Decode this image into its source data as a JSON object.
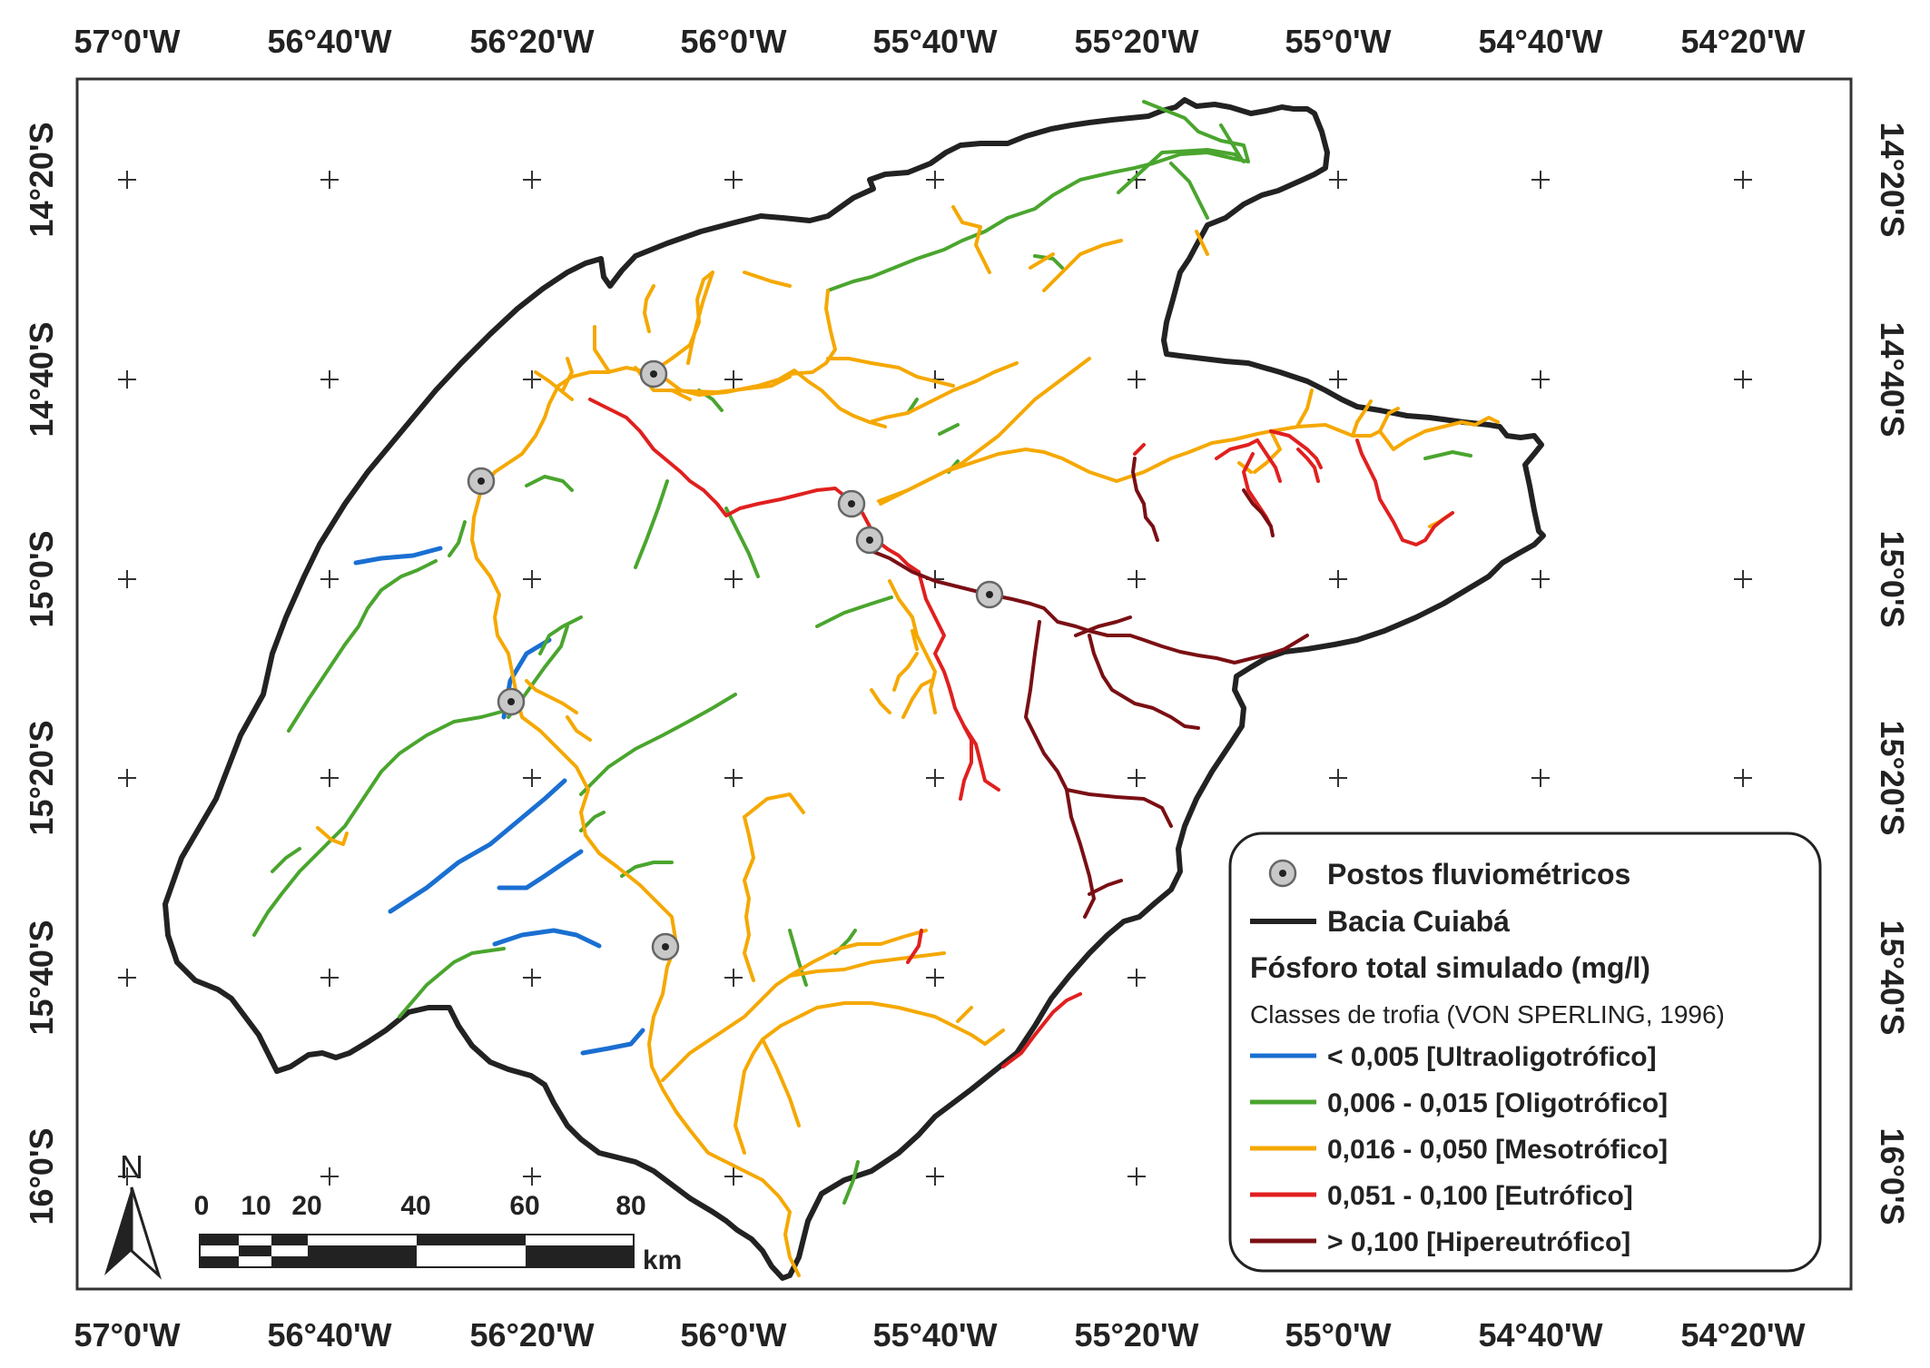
{
  "longitudes": [
    "57°0'W",
    "56°40'W",
    "56°20'W",
    "56°0'W",
    "55°40'W",
    "55°20'W",
    "55°0'W",
    "54°40'W",
    "54°20'W"
  ],
  "latitudes": [
    "14°20'S",
    "14°40'S",
    "15°0'S",
    "15°20'S",
    "15°40'S",
    "16°0'S"
  ],
  "north_label": "N",
  "scale": {
    "labels": [
      "0",
      "10",
      "20",
      "40",
      "60",
      "80"
    ],
    "unit": "km"
  },
  "legend": {
    "stations": "Postos fluviométricos",
    "basin": "Bacia Cuiabá",
    "title": "Fósforo total simulado (mg/l)",
    "subtitle": "Classes de trofia (VON SPERLING, 1996)",
    "classes": [
      {
        "label": "< 0,005 [Ultraoligotrófico]",
        "color": "#1a6fd1"
      },
      {
        "label": "0,006 - 0,015 [Oligotrófico]",
        "color": "#4aa52e"
      },
      {
        "label": "0,016 - 0,050 [Mesotrófico]",
        "color": "#f5a800"
      },
      {
        "label": "0,051 - 0,100 [Eutrófico]",
        "color": "#e0201f"
      },
      {
        "label": "> 0,100 [Hipereutrófico]",
        "color": "#7a0f14"
      }
    ]
  },
  "colors": {
    "basin": "#222222",
    "frame": "#333333"
  }
}
